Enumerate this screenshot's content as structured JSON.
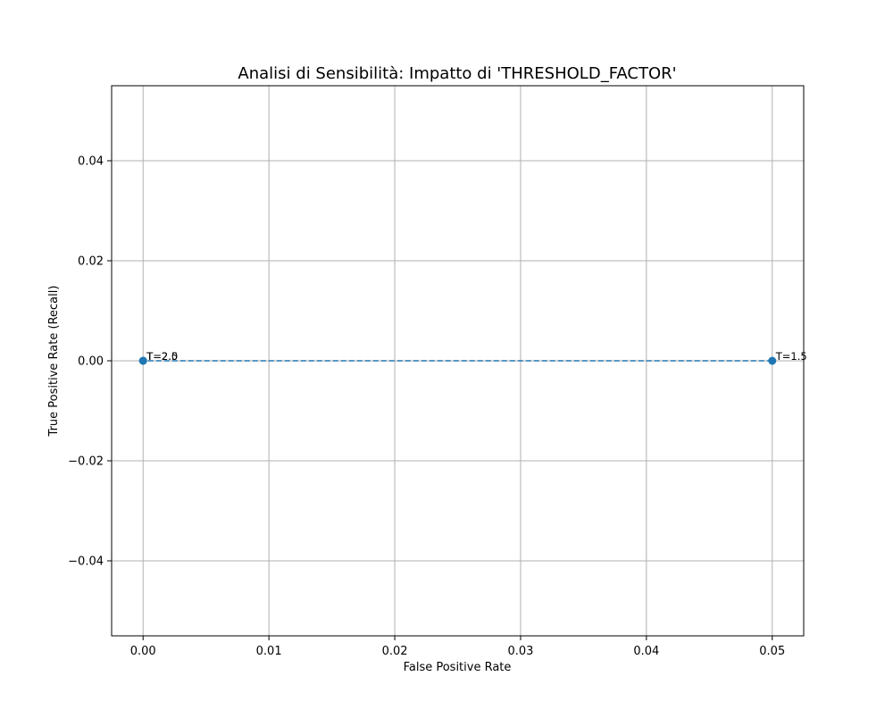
{
  "chart_data": {
    "type": "line",
    "title": "Analisi di Sensibilità: Impatto di 'THRESHOLD_FACTOR'",
    "xlabel": "False Positive Rate",
    "ylabel": "True Positive Rate (Recall)",
    "xlim": [
      -0.0025,
      0.0525
    ],
    "ylim": [
      -0.055,
      0.055
    ],
    "x_ticks": [
      0.0,
      0.01,
      0.02,
      0.03,
      0.04,
      0.05
    ],
    "x_tick_labels": [
      "0.00",
      "0.01",
      "0.02",
      "0.03",
      "0.04",
      "0.05"
    ],
    "y_ticks": [
      -0.04,
      -0.02,
      0.0,
      0.02,
      0.04
    ],
    "y_tick_labels": [
      "−0.04",
      "−0.02",
      "0.00",
      "0.02",
      "0.04"
    ],
    "grid": true,
    "line_style": "dashed",
    "marker": "circle",
    "series": [
      {
        "color": "#1f77b4",
        "points": [
          {
            "x": 0.05,
            "y": 0.0,
            "label": "T=1.5"
          },
          {
            "x": 0.0,
            "y": 0.0,
            "label": "T=2.0"
          },
          {
            "x": 0.0,
            "y": 0.0,
            "label": "T=2.5"
          }
        ]
      }
    ]
  },
  "colors": {
    "series": "#1f77b4",
    "grid": "#b0b0b0",
    "axes": "#000000"
  }
}
